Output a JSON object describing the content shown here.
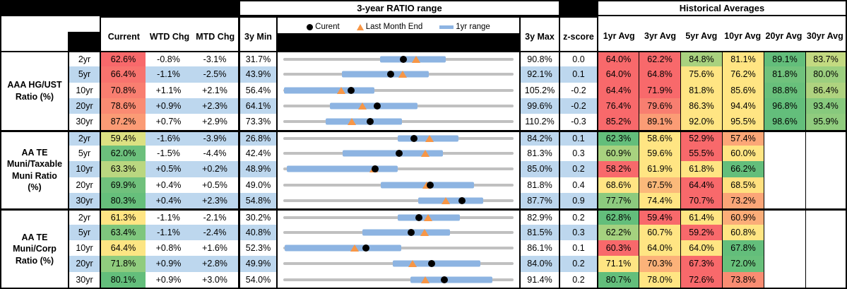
{
  "header": {
    "range_title": "3-year RATIO range",
    "hist_title": "Historical Averages",
    "col_current": "Current",
    "col_wtd": "WTD Chg",
    "col_mtd": "MTD Chg",
    "col_3ymin": "3y Min",
    "col_3ymax": "3y Max",
    "col_zscore": "z-score",
    "avg_cols": [
      "1yr Avg",
      "3yr Avg",
      "5yr Avg",
      "10yr Avg",
      "20yr Avg",
      "30yr Avg"
    ],
    "legend": {
      "current": "Curent",
      "lme": "Last Month End",
      "range": "1yr range"
    }
  },
  "colors": {
    "band": "#BDD7EE",
    "range_bar": "#8DB4E2",
    "track": "#C0C0C0",
    "current_dot": "#000000",
    "lme_triangle": "#F79646",
    "scale_red": "#F8696B",
    "scale_yellow": "#FFE583",
    "scale_green": "#63BE7B"
  },
  "groups": [
    {
      "label": "AAA HG/UST Ratio (%)",
      "label_lines": [
        "AAA HG/UST",
        "Ratio (%)"
      ],
      "rows": [
        {
          "tenor": "2yr",
          "current": "62.6%",
          "current_bg": "#F8696B",
          "wtd": "-0.8%",
          "mtd": "-3.1%",
          "min": "31.7%",
          "max": "90.8%",
          "z": "0.0",
          "chart": {
            "min": 31.7,
            "max": 90.8,
            "bar_lo": 56.5,
            "bar_hi": 73.4,
            "dot": 62.6,
            "tri": 65.7
          },
          "avgs": [
            {
              "v": "64.0%",
              "bg": "#F8696B"
            },
            {
              "v": "62.2%",
              "bg": "#F8696B"
            },
            {
              "v": "84.8%",
              "bg": "#A9D27F"
            },
            {
              "v": "81.1%",
              "bg": "#FFE583"
            },
            {
              "v": "89.1%",
              "bg": "#63BE7B"
            },
            {
              "v": "83.7%",
              "bg": "#C3DA81"
            }
          ]
        },
        {
          "tenor": "5yr",
          "current": "66.4%",
          "current_bg": "#F8736E",
          "wtd": "-1.1%",
          "mtd": "-2.5%",
          "min": "43.9%",
          "max": "92.1%",
          "z": "0.1",
          "chart": {
            "min": 43.9,
            "max": 92.1,
            "bar_lo": 56.2,
            "bar_hi": 74.3,
            "dot": 66.4,
            "tri": 68.9
          },
          "avgs": [
            {
              "v": "64.0%",
              "bg": "#F8696B"
            },
            {
              "v": "64.8%",
              "bg": "#F8696B"
            },
            {
              "v": "75.6%",
              "bg": "#FFE583"
            },
            {
              "v": "76.2%",
              "bg": "#FFE583"
            },
            {
              "v": "81.8%",
              "bg": "#70C27C"
            },
            {
              "v": "80.0%",
              "bg": "#9CCF7F"
            }
          ]
        },
        {
          "tenor": "10yr",
          "current": "70.8%",
          "current_bg": "#F97E70",
          "wtd": "+1.1%",
          "mtd": "+2.1%",
          "min": "56.4%",
          "max": "105.2%",
          "z": "-0.2",
          "chart": {
            "min": 56.4,
            "max": 105.2,
            "bar_lo": 56.6,
            "bar_hi": 75.7,
            "dot": 70.8,
            "tri": 68.7
          },
          "avgs": [
            {
              "v": "64.4%",
              "bg": "#F8696B"
            },
            {
              "v": "71.9%",
              "bg": "#F8696B"
            },
            {
              "v": "81.8%",
              "bg": "#FFE583"
            },
            {
              "v": "85.6%",
              "bg": "#FFE583"
            },
            {
              "v": "88.8%",
              "bg": "#68C07B"
            },
            {
              "v": "86.4%",
              "bg": "#AFD37F"
            }
          ]
        },
        {
          "tenor": "20yr",
          "current": "78.6%",
          "current_bg": "#FA8B72",
          "wtd": "+0.9%",
          "mtd": "+2.3%",
          "min": "64.1%",
          "max": "99.6%",
          "z": "-0.2",
          "chart": {
            "min": 64.1,
            "max": 99.6,
            "bar_lo": 71.3,
            "bar_hi": 84.8,
            "dot": 78.6,
            "tri": 76.3
          },
          "avgs": [
            {
              "v": "76.4%",
              "bg": "#F8696B"
            },
            {
              "v": "79.6%",
              "bg": "#F87E70"
            },
            {
              "v": "86.3%",
              "bg": "#FFE583"
            },
            {
              "v": "94.4%",
              "bg": "#FFE583"
            },
            {
              "v": "96.8%",
              "bg": "#63BE7B"
            },
            {
              "v": "93.4%",
              "bg": "#87C97D"
            }
          ]
        },
        {
          "tenor": "30yr",
          "current": "87.2%",
          "current_bg": "#FB9B75",
          "wtd": "+0.7%",
          "mtd": "+2.9%",
          "min": "73.3%",
          "max": "110.2%",
          "z": "-0.3",
          "chart": {
            "min": 73.3,
            "max": 110.2,
            "bar_lo": 80.1,
            "bar_hi": 92.3,
            "dot": 87.2,
            "tri": 84.3
          },
          "avgs": [
            {
              "v": "85.2%",
              "bg": "#F8696B"
            },
            {
              "v": "89.1%",
              "bg": "#FB9C75"
            },
            {
              "v": "92.0%",
              "bg": "#FFE583"
            },
            {
              "v": "95.5%",
              "bg": "#FFE583"
            },
            {
              "v": "98.6%",
              "bg": "#63BE7B"
            },
            {
              "v": "95.9%",
              "bg": "#90CC7E"
            }
          ]
        }
      ]
    },
    {
      "label": "AA TE Muni/Taxable Muni Ratio (%)",
      "label_lines": [
        "AA TE",
        "Muni/Taxable",
        "Muni Ratio",
        "(%)"
      ],
      "rows": [
        {
          "tenor": "2yr",
          "current": "59.4%",
          "current_bg": "#DCE182",
          "wtd": "-1.6%",
          "mtd": "-3.9%",
          "min": "26.8%",
          "max": "84.2%",
          "z": "0.1",
          "chart": {
            "min": 26.8,
            "max": 84.2,
            "bar_lo": 55.3,
            "bar_hi": 70.4,
            "dot": 59.4,
            "tri": 63.3
          },
          "avgs": [
            {
              "v": "62.3%",
              "bg": "#63BE7B"
            },
            {
              "v": "58.6%",
              "bg": "#FFE583"
            },
            {
              "v": "52.9%",
              "bg": "#F8696B"
            },
            {
              "v": "57.4%",
              "bg": "#FCA777"
            },
            {
              "v": "",
              "bg": "#FFFFFF"
            },
            {
              "v": "",
              "bg": "#FFFFFF"
            }
          ]
        },
        {
          "tenor": "5yr",
          "current": "62.0%",
          "current_bg": "#6CC07C",
          "wtd": "-1.5%",
          "mtd": "-4.4%",
          "min": "42.4%",
          "max": "81.3%",
          "z": "0.3",
          "chart": {
            "min": 42.4,
            "max": 81.3,
            "bar_lo": 52.4,
            "bar_hi": 69.4,
            "dot": 62.0,
            "tri": 66.4
          },
          "avgs": [
            {
              "v": "60.9%",
              "bg": "#A8D27F"
            },
            {
              "v": "59.6%",
              "bg": "#FFE583"
            },
            {
              "v": "55.5%",
              "bg": "#F8696B"
            },
            {
              "v": "60.0%",
              "bg": "#FFE583"
            },
            {
              "v": "",
              "bg": "#FFFFFF"
            },
            {
              "v": "",
              "bg": "#FFFFFF"
            }
          ]
        },
        {
          "tenor": "10yr",
          "current": "63.3%",
          "current_bg": "#BAD780",
          "wtd": "+0.5%",
          "mtd": "+0.2%",
          "min": "48.9%",
          "max": "85.0%",
          "z": "0.2",
          "chart": {
            "min": 48.9,
            "max": 85.0,
            "bar_lo": 49.5,
            "bar_hi": 66.8,
            "dot": 63.3,
            "tri": 63.1
          },
          "avgs": [
            {
              "v": "58.2%",
              "bg": "#F8696B"
            },
            {
              "v": "61.9%",
              "bg": "#FFE583"
            },
            {
              "v": "61.8%",
              "bg": "#FFE583"
            },
            {
              "v": "66.2%",
              "bg": "#63BE7B"
            },
            {
              "v": "",
              "bg": "#FFFFFF"
            },
            {
              "v": "",
              "bg": "#FFFFFF"
            }
          ]
        },
        {
          "tenor": "20yr",
          "current": "69.9%",
          "current_bg": "#70C17C",
          "wtd": "+0.4%",
          "mtd": "+0.5%",
          "min": "49.0%",
          "max": "81.8%",
          "z": "0.4",
          "chart": {
            "min": 49.0,
            "max": 81.8,
            "bar_lo": 62.9,
            "bar_hi": 76.1,
            "dot": 69.9,
            "tri": 69.4
          },
          "avgs": [
            {
              "v": "68.6%",
              "bg": "#FFE583"
            },
            {
              "v": "67.5%",
              "bg": "#FBB97A"
            },
            {
              "v": "64.4%",
              "bg": "#F8696B"
            },
            {
              "v": "68.5%",
              "bg": "#FFE07F"
            },
            {
              "v": "",
              "bg": "#FFFFFF"
            },
            {
              "v": "",
              "bg": "#FFFFFF"
            }
          ]
        },
        {
          "tenor": "30yr",
          "current": "80.3%",
          "current_bg": "#66BF7B",
          "wtd": "+0.4%",
          "mtd": "+2.3%",
          "min": "54.8%",
          "max": "87.7%",
          "z": "0.9",
          "chart": {
            "min": 54.8,
            "max": 87.7,
            "bar_lo": 74.1,
            "bar_hi": 83.3,
            "dot": 80.3,
            "tri": 78.0
          },
          "avgs": [
            {
              "v": "77.7%",
              "bg": "#8CCA7E"
            },
            {
              "v": "74.4%",
              "bg": "#FFE583"
            },
            {
              "v": "70.7%",
              "bg": "#F8696B"
            },
            {
              "v": "73.2%",
              "bg": "#FBA577"
            },
            {
              "v": "",
              "bg": "#FFFFFF"
            },
            {
              "v": "",
              "bg": "#FFFFFF"
            }
          ]
        }
      ]
    },
    {
      "label": "AA TE Muni/Corp Ratio (%)",
      "label_lines": [
        "AA TE",
        "Muni/Corp",
        "Ratio (%)"
      ],
      "rows": [
        {
          "tenor": "2yr",
          "current": "61.3%",
          "current_bg": "#FFE583",
          "wtd": "-1.1%",
          "mtd": "-2.1%",
          "min": "30.2%",
          "max": "82.9%",
          "z": "0.2",
          "chart": {
            "min": 30.2,
            "max": 82.9,
            "bar_lo": 56.4,
            "bar_hi": 70.5,
            "dot": 61.3,
            "tri": 63.4
          },
          "avgs": [
            {
              "v": "62.8%",
              "bg": "#63BE7B"
            },
            {
              "v": "59.4%",
              "bg": "#F8696B"
            },
            {
              "v": "61.4%",
              "bg": "#FFE583"
            },
            {
              "v": "60.9%",
              "bg": "#FBAD78"
            },
            {
              "v": "",
              "bg": "#FFFFFF"
            },
            {
              "v": "",
              "bg": "#FFFFFF"
            }
          ]
        },
        {
          "tenor": "5yr",
          "current": "63.4%",
          "current_bg": "#7FC67D",
          "wtd": "-1.1%",
          "mtd": "-2.4%",
          "min": "40.8%",
          "max": "81.5%",
          "z": "0.3",
          "chart": {
            "min": 40.8,
            "max": 81.5,
            "bar_lo": 54.8,
            "bar_hi": 70.3,
            "dot": 63.4,
            "tri": 65.8
          },
          "avgs": [
            {
              "v": "62.2%",
              "bg": "#A5D17F"
            },
            {
              "v": "60.7%",
              "bg": "#FFE583"
            },
            {
              "v": "59.2%",
              "bg": "#F8696B"
            },
            {
              "v": "60.8%",
              "bg": "#FFE583"
            },
            {
              "v": "",
              "bg": "#FFFFFF"
            },
            {
              "v": "",
              "bg": "#FFFFFF"
            }
          ]
        },
        {
          "tenor": "10yr",
          "current": "64.4%",
          "current_bg": "#FCE583",
          "wtd": "+0.8%",
          "mtd": "+1.6%",
          "min": "52.3%",
          "max": "86.1%",
          "z": "0.1",
          "chart": {
            "min": 52.3,
            "max": 86.1,
            "bar_lo": 52.6,
            "bar_hi": 69.6,
            "dot": 64.4,
            "tri": 62.8
          },
          "avgs": [
            {
              "v": "60.3%",
              "bg": "#F8696B"
            },
            {
              "v": "64.0%",
              "bg": "#FFE583"
            },
            {
              "v": "64.0%",
              "bg": "#FFE583"
            },
            {
              "v": "67.8%",
              "bg": "#63BE7B"
            },
            {
              "v": "",
              "bg": "#FFFFFF"
            },
            {
              "v": "",
              "bg": "#FFFFFF"
            }
          ]
        },
        {
          "tenor": "20yr",
          "current": "71.8%",
          "current_bg": "#90CC7E",
          "wtd": "+0.9%",
          "mtd": "+2.8%",
          "min": "49.9%",
          "max": "84.0%",
          "z": "0.2",
          "chart": {
            "min": 49.9,
            "max": 84.0,
            "bar_lo": 66.1,
            "bar_hi": 79.0,
            "dot": 71.8,
            "tri": 69.0
          },
          "avgs": [
            {
              "v": "71.1%",
              "bg": "#FFE583"
            },
            {
              "v": "70.3%",
              "bg": "#FBB279"
            },
            {
              "v": "67.3%",
              "bg": "#F8696B"
            },
            {
              "v": "72.0%",
              "bg": "#68C07B"
            },
            {
              "v": "",
              "bg": "#FFFFFF"
            },
            {
              "v": "",
              "bg": "#FFFFFF"
            }
          ]
        },
        {
          "tenor": "30yr",
          "current": "80.1%",
          "current_bg": "#63BE7B",
          "wtd": "+0.9%",
          "mtd": "+3.0%",
          "min": "54.0%",
          "max": "91.4%",
          "z": "0.2",
          "chart": {
            "min": 54.0,
            "max": 91.4,
            "bar_lo": 74.7,
            "bar_hi": 87.9,
            "dot": 80.1,
            "tri": 77.1
          },
          "avgs": [
            {
              "v": "80.7%",
              "bg": "#63BE7B"
            },
            {
              "v": "78.0%",
              "bg": "#FFE583"
            },
            {
              "v": "72.6%",
              "bg": "#F8696B"
            },
            {
              "v": "73.8%",
              "bg": "#F98C72"
            },
            {
              "v": "",
              "bg": "#FFFFFF"
            },
            {
              "v": "",
              "bg": "#FFFFFF"
            }
          ]
        }
      ]
    }
  ],
  "chart_data": {
    "type": "range_dot_plot",
    "title": "3-year RATIO range",
    "legend": [
      "Curent",
      "Last Month End",
      "1yr range"
    ],
    "rows": [
      {
        "series": "AAA HG/UST Ratio (%)",
        "tenor": "2yr",
        "min": 31.7,
        "max": 90.8,
        "one_yr_range": [
          56.5,
          73.4
        ],
        "current": 62.6,
        "last_month_end": 65.7
      },
      {
        "series": "AAA HG/UST Ratio (%)",
        "tenor": "5yr",
        "min": 43.9,
        "max": 92.1,
        "one_yr_range": [
          56.2,
          74.3
        ],
        "current": 66.4,
        "last_month_end": 68.9
      },
      {
        "series": "AAA HG/UST Ratio (%)",
        "tenor": "10yr",
        "min": 56.4,
        "max": 105.2,
        "one_yr_range": [
          56.6,
          75.7
        ],
        "current": 70.8,
        "last_month_end": 68.7
      },
      {
        "series": "AAA HG/UST Ratio (%)",
        "tenor": "20yr",
        "min": 64.1,
        "max": 99.6,
        "one_yr_range": [
          71.3,
          84.8
        ],
        "current": 78.6,
        "last_month_end": 76.3
      },
      {
        "series": "AAA HG/UST Ratio (%)",
        "tenor": "30yr",
        "min": 73.3,
        "max": 110.2,
        "one_yr_range": [
          80.1,
          92.3
        ],
        "current": 87.2,
        "last_month_end": 84.3
      },
      {
        "series": "AA TE Muni/Taxable Muni Ratio (%)",
        "tenor": "2yr",
        "min": 26.8,
        "max": 84.2,
        "one_yr_range": [
          55.3,
          70.4
        ],
        "current": 59.4,
        "last_month_end": 63.3
      },
      {
        "series": "AA TE Muni/Taxable Muni Ratio (%)",
        "tenor": "5yr",
        "min": 42.4,
        "max": 81.3,
        "one_yr_range": [
          52.4,
          69.4
        ],
        "current": 62.0,
        "last_month_end": 66.4
      },
      {
        "series": "AA TE Muni/Taxable Muni Ratio (%)",
        "tenor": "10yr",
        "min": 48.9,
        "max": 85.0,
        "one_yr_range": [
          49.5,
          66.8
        ],
        "current": 63.3,
        "last_month_end": 63.1
      },
      {
        "series": "AA TE Muni/Taxable Muni Ratio (%)",
        "tenor": "20yr",
        "min": 49.0,
        "max": 81.8,
        "one_yr_range": [
          62.9,
          76.1
        ],
        "current": 69.9,
        "last_month_end": 69.4
      },
      {
        "series": "AA TE Muni/Taxable Muni Ratio (%)",
        "tenor": "30yr",
        "min": 54.8,
        "max": 87.7,
        "one_yr_range": [
          74.1,
          83.3
        ],
        "current": 80.3,
        "last_month_end": 78.0
      },
      {
        "series": "AA TE Muni/Corp Ratio (%)",
        "tenor": "2yr",
        "min": 30.2,
        "max": 82.9,
        "one_yr_range": [
          56.4,
          70.5
        ],
        "current": 61.3,
        "last_month_end": 63.4
      },
      {
        "series": "AA TE Muni/Corp Ratio (%)",
        "tenor": "5yr",
        "min": 40.8,
        "max": 81.5,
        "one_yr_range": [
          54.8,
          70.3
        ],
        "current": 63.4,
        "last_month_end": 65.8
      },
      {
        "series": "AA TE Muni/Corp Ratio (%)",
        "tenor": "10yr",
        "min": 52.3,
        "max": 86.1,
        "one_yr_range": [
          52.6,
          69.6
        ],
        "current": 64.4,
        "last_month_end": 62.8
      },
      {
        "series": "AA TE Muni/Corp Ratio (%)",
        "tenor": "20yr",
        "min": 49.9,
        "max": 84.0,
        "one_yr_range": [
          66.1,
          79.0
        ],
        "current": 71.8,
        "last_month_end": 69.0
      },
      {
        "series": "AA TE Muni/Corp Ratio (%)",
        "tenor": "30yr",
        "min": 54.0,
        "max": 91.4,
        "one_yr_range": [
          74.7,
          87.9
        ],
        "current": 80.1,
        "last_month_end": 77.1
      }
    ]
  }
}
